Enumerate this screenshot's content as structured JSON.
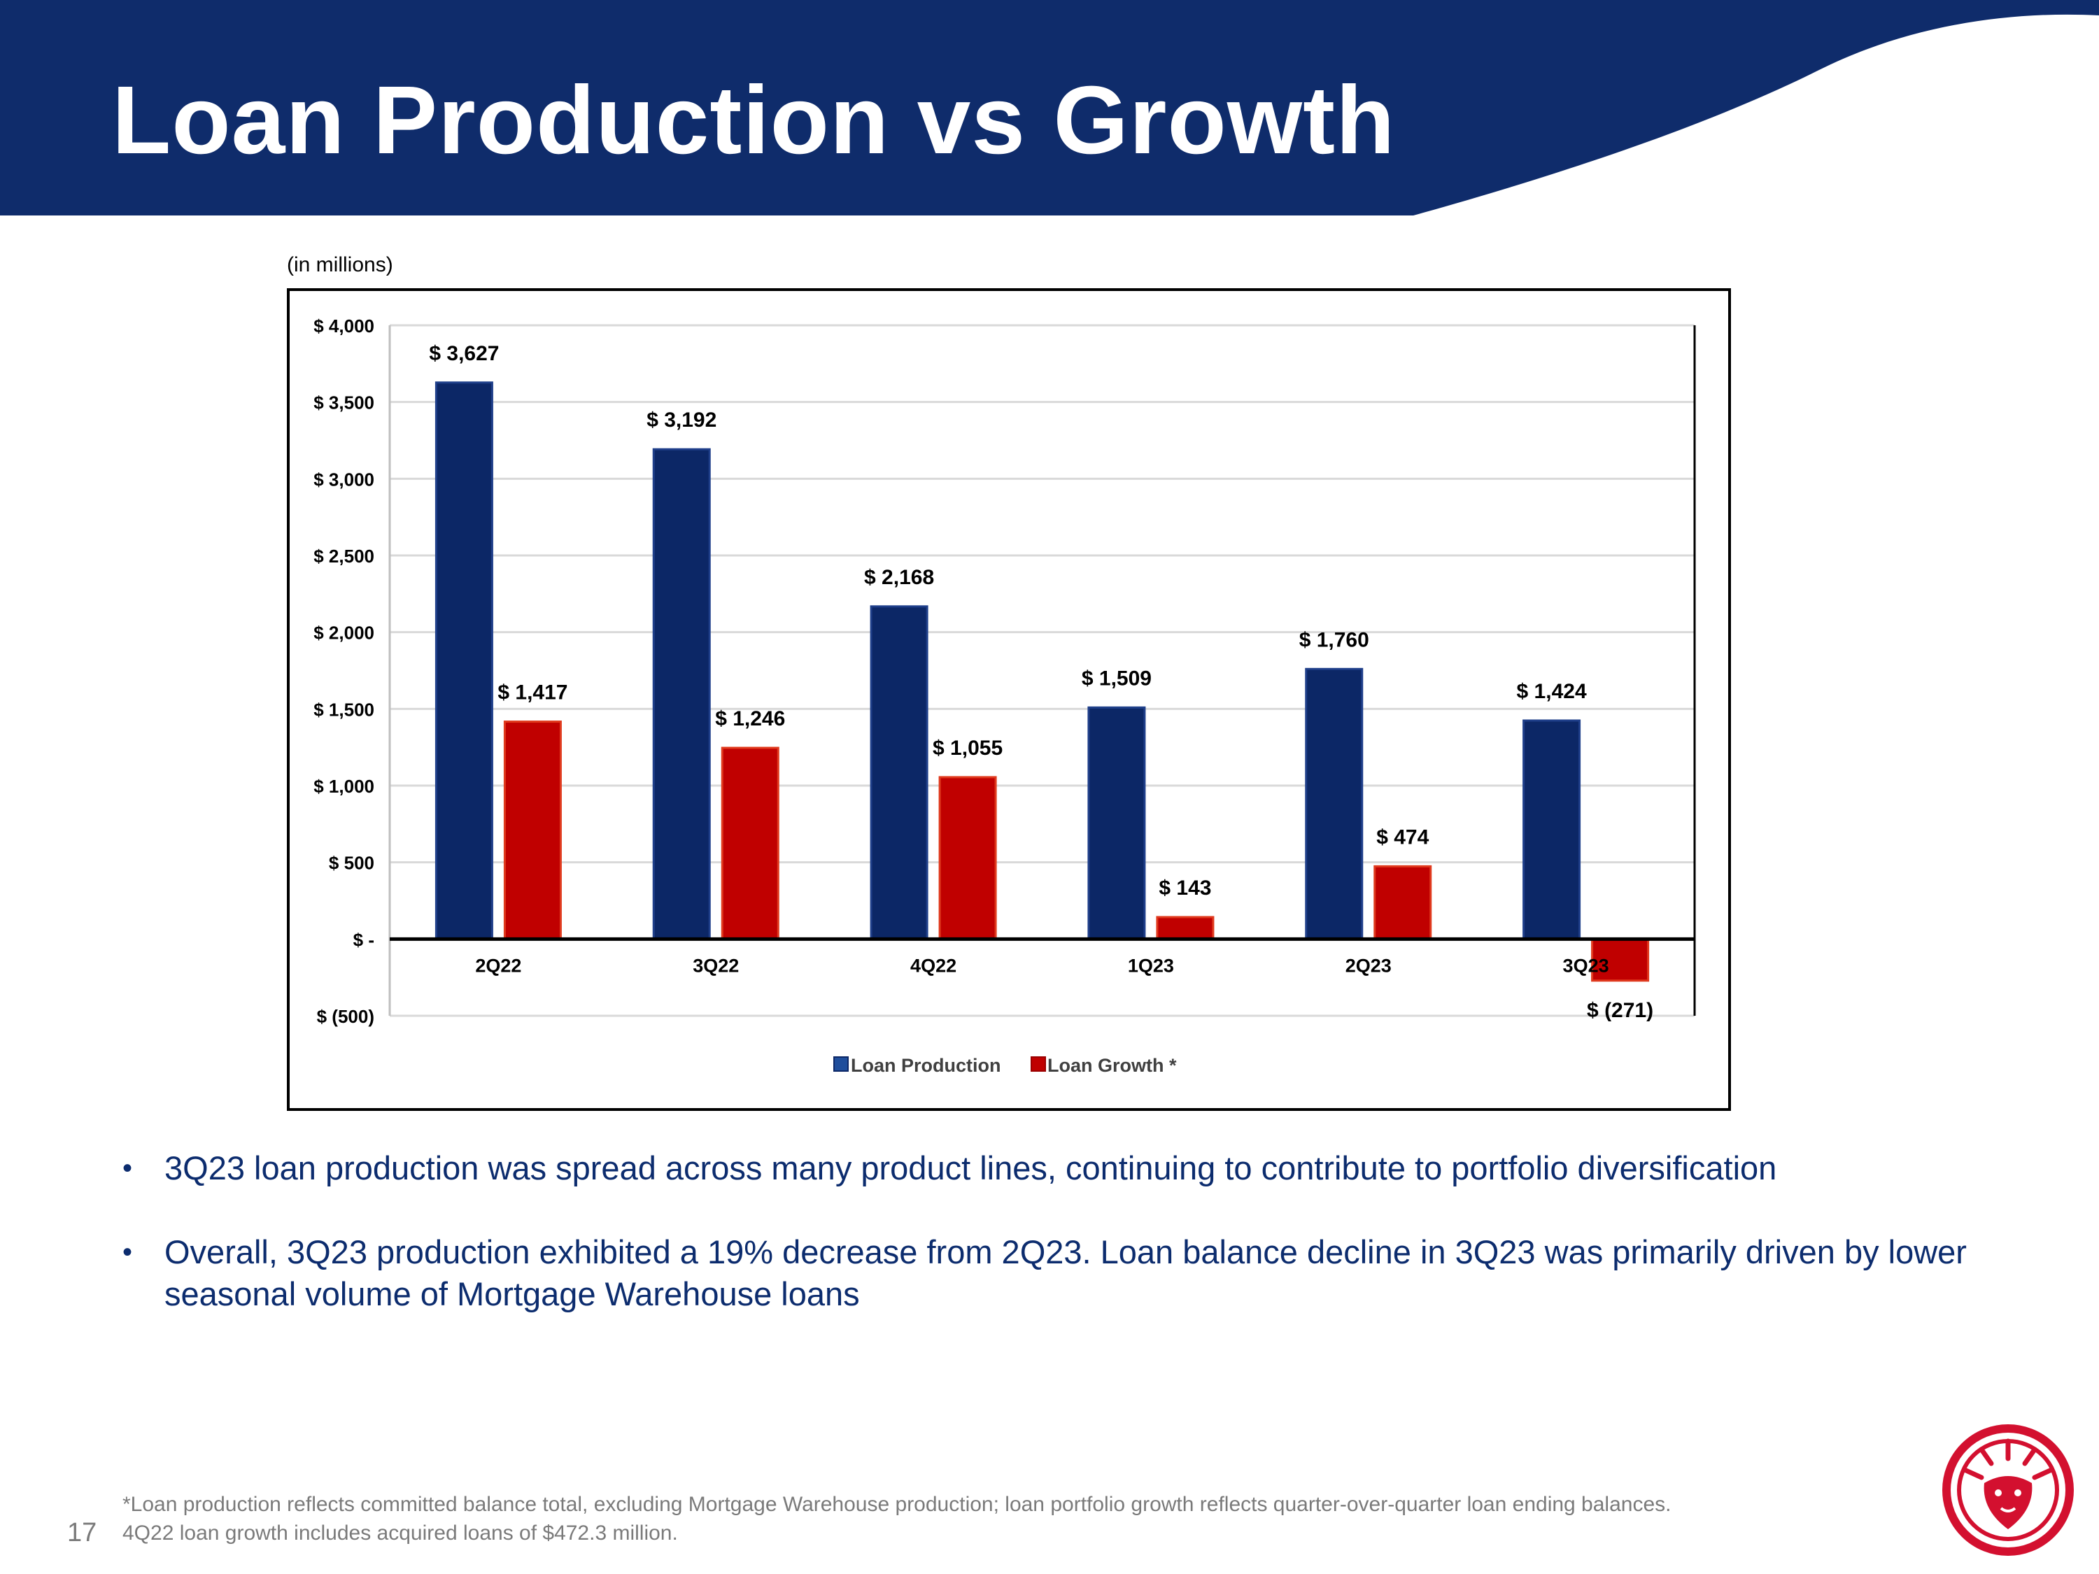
{
  "header": {
    "title": "Loan Production vs Growth"
  },
  "chart_note": "(in millions)",
  "chart_data": {
    "type": "bar",
    "title": "",
    "xlabel": "",
    "ylabel": "",
    "units_label": "(in millions)",
    "categories": [
      "2Q22",
      "3Q22",
      "4Q22",
      "1Q23",
      "2Q23",
      "3Q23"
    ],
    "series": [
      {
        "name": "Loan Production",
        "color": "#0c2766",
        "values": [
          3627,
          3192,
          2168,
          1509,
          1760,
          1424
        ],
        "labels": [
          "$ 3,627",
          "$ 3,192",
          "$ 2,168",
          "$ 1,509",
          "$ 1,760",
          "$ 1,424"
        ]
      },
      {
        "name": "Loan Growth *",
        "color": "#c00000",
        "values": [
          1417,
          1246,
          1055,
          143,
          474,
          -271
        ],
        "labels": [
          "$ 1,417",
          "$ 1,246",
          "$ 1,055",
          "$ 143",
          "$ 474",
          "$ (271)"
        ]
      }
    ],
    "ylim": [
      -500,
      4000
    ],
    "yticks": [
      4000,
      3500,
      3000,
      2500,
      2000,
      1500,
      1000,
      500,
      0,
      -500
    ],
    "ytick_labels": [
      "$ 4,000",
      "$ 3,500",
      "$ 3,000",
      "$ 2,500",
      "$ 2,000",
      "$ 1,500",
      "$ 1,000",
      "$ 500",
      "$ -",
      "$ (500)"
    ],
    "grid": true,
    "legend_position": "bottom-center"
  },
  "bullets": [
    "3Q23 loan production was spread across many product lines, continuing to contribute to portfolio diversification",
    "Overall, 3Q23 production exhibited a 19% decrease from 2Q23.  Loan balance decline in 3Q23 was primarily driven by lower seasonal volume of Mortgage Warehouse loans"
  ],
  "footnote": {
    "line1": "*Loan production reflects committed balance total, excluding Mortgage Warehouse production; loan portfolio growth reflects quarter-over-quarter loan ending balances.",
    "line2": "4Q22 loan growth includes acquired loans of $472.3 million."
  },
  "page_number": "17",
  "colors": {
    "navy": "#0f2c6b",
    "red": "#d3102f",
    "bullet_text": "#0c2c6e"
  }
}
